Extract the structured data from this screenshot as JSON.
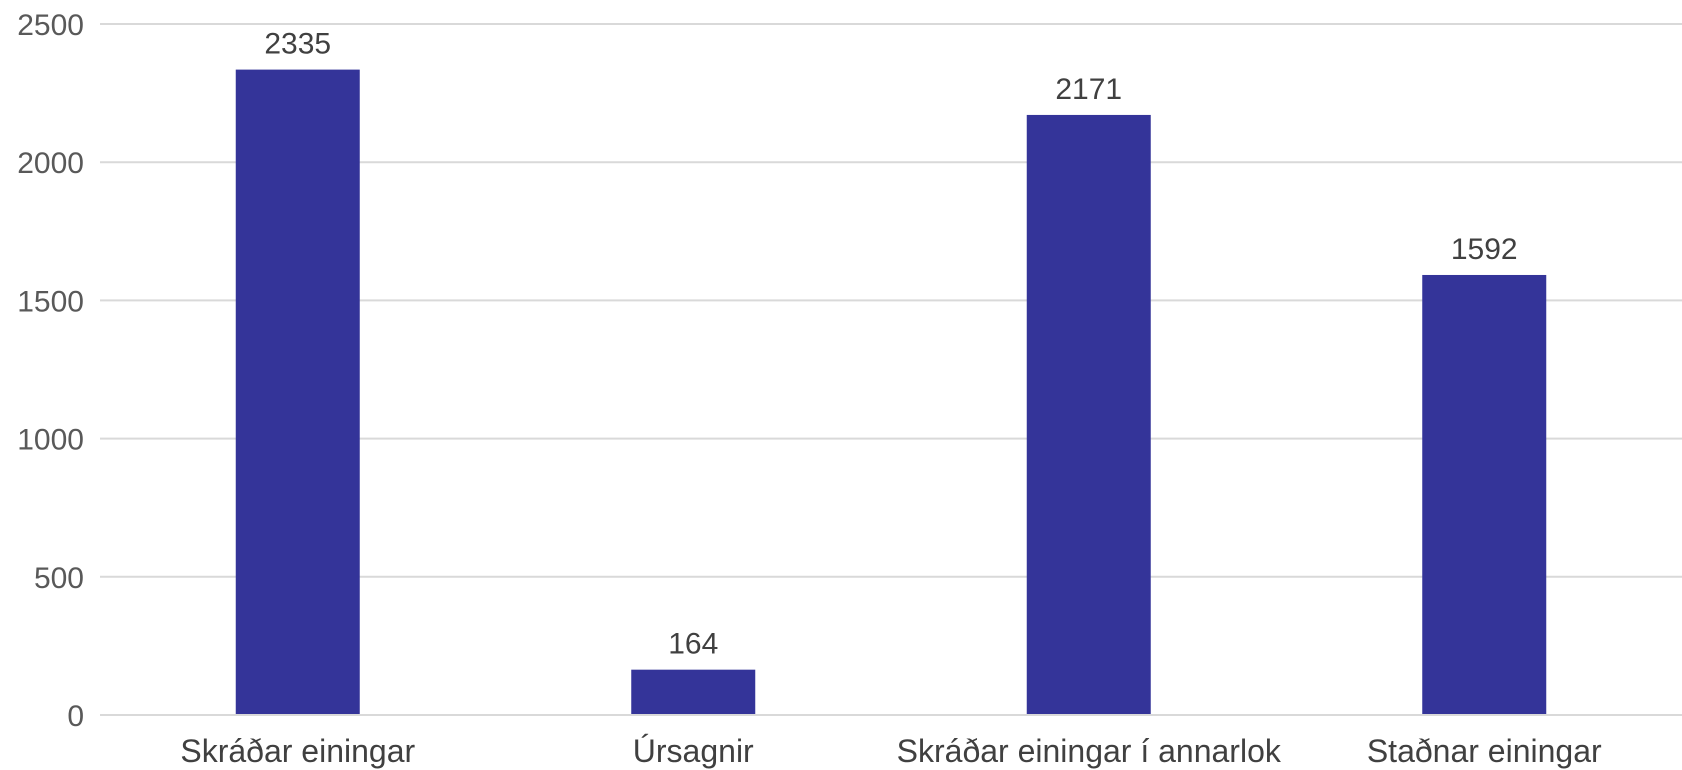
{
  "chart_data": {
    "type": "bar",
    "title": "",
    "xlabel": "",
    "ylabel": "",
    "categories": [
      "Skráðar einingar",
      "Úrsagnir",
      "Skráðar einingar í annarlok",
      "Staðnar einingar"
    ],
    "values": [
      2335,
      164,
      2171,
      1592
    ],
    "data_labels": [
      "2335",
      "164",
      "2171",
      "1592"
    ],
    "ylim": [
      0,
      2500
    ],
    "yticks": [
      0,
      500,
      1000,
      1500,
      2000,
      2500
    ],
    "ytick_labels": [
      "0",
      "500",
      "1000",
      "1500",
      "2000",
      "2500"
    ],
    "grid": true,
    "legend": "none",
    "bar_color": "#343499"
  }
}
